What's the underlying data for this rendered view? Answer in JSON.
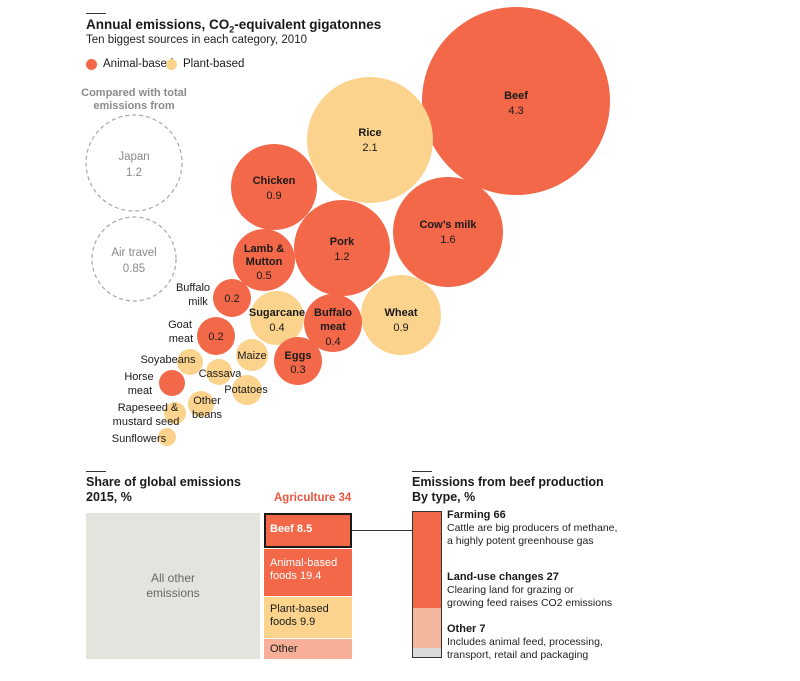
{
  "colors": {
    "animal": "#f26849",
    "plant": "#fbd38d",
    "reference_stroke": "#a6a6a6",
    "other_all": "#e4e4df",
    "agri_other": "#f7b097",
    "beef_other": "#f5b69e",
    "beef_misc": "#d9d9d9",
    "agri_title": "#e8573f"
  },
  "header": {
    "title_prefix": "Annual emissions, CO",
    "title_sub": "2",
    "title_suffix": "-equivalent gigatonnes",
    "subtitle": "Ten biggest sources in each category, 2010"
  },
  "legend": {
    "animal_label": "Animal-based",
    "plant_label": "Plant-based"
  },
  "reference": {
    "heading_line1": "Compared with total",
    "heading_line2": "emissions from",
    "items": [
      {
        "name": "Japan",
        "value": 1.2
      },
      {
        "name": "Air travel",
        "value": 0.85
      }
    ]
  },
  "chart_data": [
    {
      "type": "bubble",
      "title": "Annual emissions, CO2-equivalent gigatonnes",
      "subtitle": "Ten biggest sources in each category, 2010",
      "units": "CO2-equivalent gigatonnes",
      "series": [
        {
          "name": "Animal-based",
          "points": [
            {
              "label": "Beef",
              "value": 4.3
            },
            {
              "label": "Cow's milk",
              "value": 1.6
            },
            {
              "label": "Pork",
              "value": 1.2
            },
            {
              "label": "Chicken",
              "value": 0.9
            },
            {
              "label": "Lamb & Mutton",
              "value": 0.5
            },
            {
              "label": "Buffalo meat",
              "value": 0.4
            },
            {
              "label": "Eggs",
              "value": 0.3
            },
            {
              "label": "Buffalo milk",
              "value": 0.2
            },
            {
              "label": "Goat meat",
              "value": 0.2
            },
            {
              "label": "Horse meat",
              "value": 0.05
            }
          ]
        },
        {
          "name": "Plant-based",
          "points": [
            {
              "label": "Rice",
              "value": 2.1
            },
            {
              "label": "Wheat",
              "value": 0.9
            },
            {
              "label": "Sugarcane",
              "value": 0.4
            },
            {
              "label": "Maize",
              "value": 0.15
            },
            {
              "label": "Cassava",
              "value": 0.1
            },
            {
              "label": "Potatoes",
              "value": 0.1
            },
            {
              "label": "Soyabeans",
              "value": 0.07
            },
            {
              "label": "Other beans",
              "value": 0.07
            },
            {
              "label": "Rapeseed & mustard seed",
              "value": 0.05
            },
            {
              "label": "Sunflowers",
              "value": 0.03
            }
          ]
        }
      ],
      "display": {
        "beef": {
          "label": "Beef",
          "value": "4.3"
        },
        "rice": {
          "label": "Rice",
          "value": "2.1"
        },
        "cows_milk": {
          "label": "Cow’s milk",
          "value": "1.6"
        },
        "chicken": {
          "label": "Chicken",
          "value": "0.9"
        },
        "pork": {
          "label": "Pork",
          "value": "1.2"
        },
        "lamb": {
          "label1": "Lamb &",
          "label2": "Mutton",
          "value": "0.5"
        },
        "wheat": {
          "label": "Wheat",
          "value": "0.9"
        },
        "sugarcane": {
          "label": "Sugarcane",
          "value": "0.4"
        },
        "buffalo_meat": {
          "label1": "Buffalo",
          "label2": "meat",
          "value": "0.4"
        },
        "eggs": {
          "label": "Eggs",
          "value": "0.3"
        },
        "buffalo_milk": {
          "label1": "Buffalo",
          "label2": "milk",
          "value": "0.2"
        },
        "goat_meat": {
          "label1": "Goat",
          "label2": "meat",
          "value": "0.2"
        },
        "maize": {
          "label": "Maize"
        },
        "soyabeans": {
          "label": "Soyabeans"
        },
        "cassava": {
          "label": "Cassava"
        },
        "potatoes": {
          "label": "Potatoes"
        },
        "horse_meat": {
          "label1": "Horse",
          "label2": "meat"
        },
        "other_beans": {
          "label1": "Other",
          "label2": "beans"
        },
        "rapeseed": {
          "label1": "Rapeseed &",
          "label2": "mustard seed"
        },
        "sunflowers": {
          "label": "Sunflowers"
        }
      }
    },
    {
      "type": "treemap",
      "title": "Share of global emissions",
      "subtitle": "2015, %",
      "items": [
        {
          "label": "All other emissions",
          "value": 66
        },
        {
          "label": "Agriculture",
          "value": 34,
          "children": [
            {
              "label": "Beef",
              "value": 8.5
            },
            {
              "label": "Animal-based foods",
              "value": 19.4
            },
            {
              "label": "Plant-based foods",
              "value": 9.9
            },
            {
              "label": "Other",
              "value": null
            }
          ]
        }
      ]
    },
    {
      "type": "stacked_bar",
      "title": "Emissions from beef production",
      "subtitle": "By type, %",
      "items": [
        {
          "label": "Farming",
          "value": 66
        },
        {
          "label": "Land-use changes",
          "value": 27
        },
        {
          "label": "Other",
          "value": 7
        }
      ]
    }
  ],
  "share": {
    "title": "Share of global emissions",
    "subtitle": "2015, %",
    "all_other_line1": "All other",
    "all_other_line2": "emissions",
    "agri_title": "Agriculture 34",
    "beef": "Beef 8.5",
    "animal_line1": "Animal-based",
    "animal_line2": "foods 19.4",
    "plant_line1": "Plant-based",
    "plant_line2": "foods 9.9",
    "other": "Other"
  },
  "beef_production": {
    "title": "Emissions from beef production",
    "subtitle": "By type, %",
    "farming_title": "Farming 66",
    "farming_desc1": "Cattle are big producers of methane,",
    "farming_desc2": "a highly potent greenhouse gas",
    "landuse_title": "Land-use changes 27",
    "landuse_desc1": "Clearing land for grazing or",
    "landuse_desc2": "growing feed raises CO2 emissions",
    "other_title": "Other 7",
    "other_desc1": "Includes animal feed, processing,",
    "other_desc2": "transport, retail and packaging"
  }
}
